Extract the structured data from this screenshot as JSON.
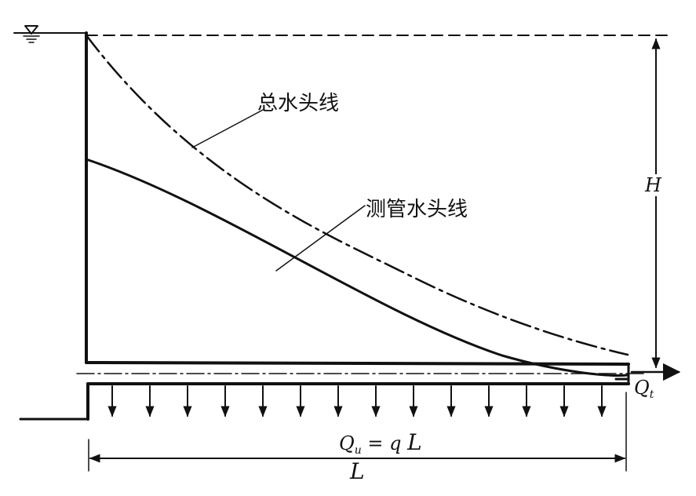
{
  "labels": {
    "total_head": "总水头线",
    "piezometric_head": "测管水头线",
    "head": "H",
    "outlet_flow_main": "Q",
    "outlet_flow_sub": "t",
    "uniform_flow_main": "Q",
    "uniform_flow_sub": "u",
    "uniform_flow_eq": " = ",
    "uniform_flow_rhs_q": "q",
    "uniform_flow_rhs_L": "L",
    "length": "L"
  },
  "symbols": {
    "water_surface": "water-surface-icon"
  },
  "colors": {
    "ink": "#111111",
    "background": "#ffffff"
  }
}
